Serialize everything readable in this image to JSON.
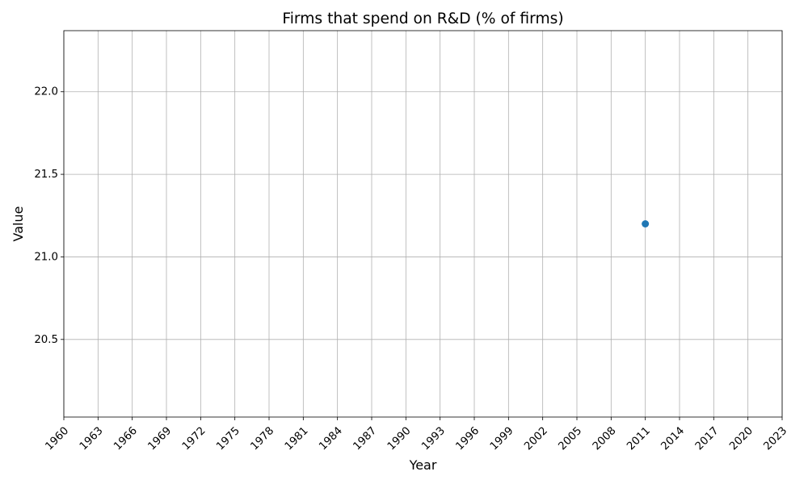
{
  "chart_data": {
    "type": "scatter",
    "title": "Firms that spend on R&D (% of firms)",
    "xlabel": "Year",
    "ylabel": "Value",
    "x_ticks": [
      1960,
      1963,
      1966,
      1969,
      1972,
      1975,
      1978,
      1981,
      1984,
      1987,
      1990,
      1993,
      1996,
      1999,
      2002,
      2005,
      2008,
      2011,
      2014,
      2017,
      2020,
      2023
    ],
    "y_ticks": [
      20.5,
      21.0,
      21.5,
      22.0
    ],
    "xlim": [
      1960,
      2023
    ],
    "ylim": [
      20.03,
      22.37
    ],
    "grid": true,
    "series": [
      {
        "x": [
          2011
        ],
        "y": [
          21.2
        ],
        "color": "#1f77b4"
      }
    ]
  }
}
